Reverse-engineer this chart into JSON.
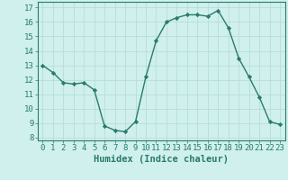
{
  "x": [
    0,
    1,
    2,
    3,
    4,
    5,
    6,
    7,
    8,
    9,
    10,
    11,
    12,
    13,
    14,
    15,
    16,
    17,
    18,
    19,
    20,
    21,
    22,
    23
  ],
  "y": [
    13.0,
    12.5,
    11.8,
    11.7,
    11.8,
    11.3,
    8.8,
    8.5,
    8.4,
    9.1,
    12.2,
    14.7,
    16.0,
    16.3,
    16.5,
    16.5,
    16.4,
    16.8,
    15.6,
    13.5,
    12.2,
    10.8,
    9.1,
    8.9
  ],
  "line_color": "#2a7a6e",
  "marker": "D",
  "marker_size": 2.2,
  "bg_color": "#cff0ec",
  "grid_color": "#b8ddd8",
  "xlabel": "Humidex (Indice chaleur)",
  "ylabel_ticks": [
    8,
    9,
    10,
    11,
    12,
    13,
    14,
    15,
    16,
    17
  ],
  "ylim": [
    7.8,
    17.4
  ],
  "xlim": [
    -0.5,
    23.5
  ],
  "xticks": [
    0,
    1,
    2,
    3,
    4,
    5,
    6,
    7,
    8,
    9,
    10,
    11,
    12,
    13,
    14,
    15,
    16,
    17,
    18,
    19,
    20,
    21,
    22,
    23
  ],
  "tick_fontsize": 6.5,
  "label_fontsize": 7.5,
  "line_width": 1.0
}
